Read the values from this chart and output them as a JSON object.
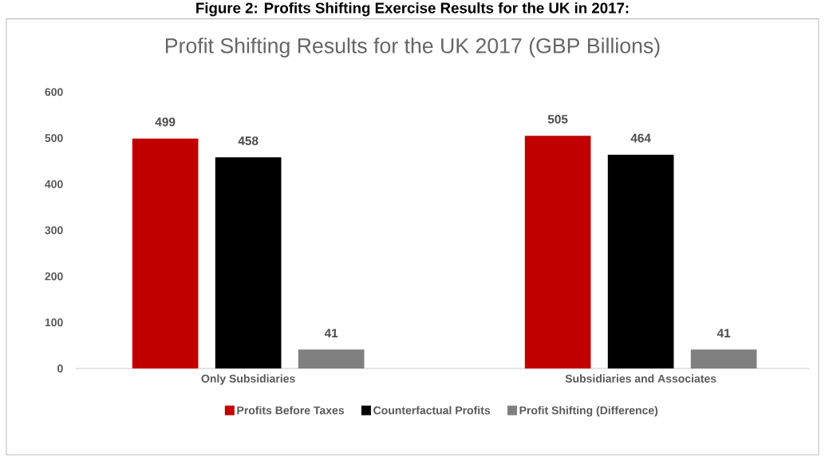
{
  "chart_data": {
    "type": "bar",
    "title": "Figure 2: Profits Shifting Exercise Results for the UK in 2017:",
    "subtitle": "Profit Shifting Results for the UK 2017 (GBP Billions)",
    "categories": [
      "Only Subsidiaries",
      "Subsidiaries and Associates"
    ],
    "series": [
      {
        "name": "Profits Before Taxes",
        "color": "#c00000",
        "values": [
          499,
          505
        ]
      },
      {
        "name": "Counterfactual Profits",
        "color": "#000000",
        "values": [
          458,
          464
        ]
      },
      {
        "name": "Profit Shifting (Difference)",
        "color": "#808080",
        "values": [
          41,
          41
        ]
      }
    ],
    "ylim": [
      0,
      600
    ],
    "yticks": [
      0,
      100,
      200,
      300,
      400,
      500,
      600
    ],
    "data_labels": true,
    "legend": "bottom"
  }
}
